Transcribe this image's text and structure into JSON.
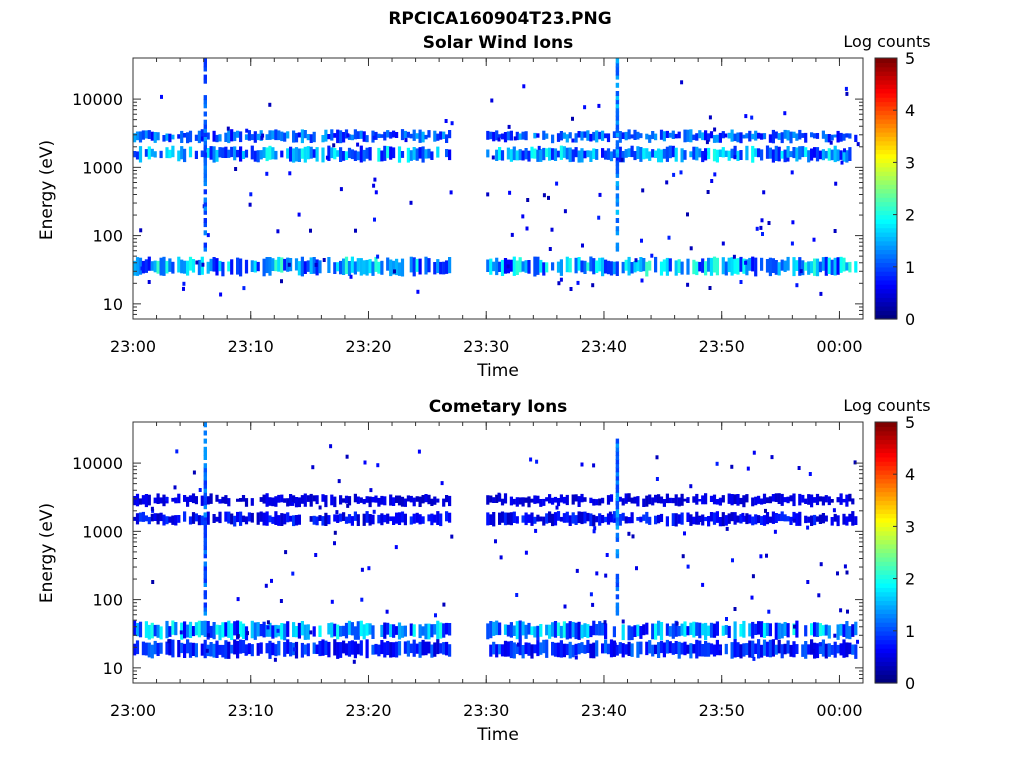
{
  "figure": {
    "title": "RPCICA160904T23.PNG"
  },
  "chart_data": [
    {
      "type": "heatmap",
      "title": "Solar Wind Ions",
      "xlabel": "Time",
      "ylabel": "Energy (eV)",
      "x_ticks": [
        "23:00",
        "23:10",
        "23:20",
        "23:30",
        "23:40",
        "23:50",
        "00:00"
      ],
      "y_ticks": [
        "10",
        "100",
        "1000",
        "10000"
      ],
      "y_scale": "log",
      "ylim": [
        6,
        40000
      ],
      "xlim": [
        "23:00",
        "00:02"
      ],
      "colorbar": {
        "label": "Log counts",
        "range": [
          0,
          5
        ],
        "ticks": [
          "0",
          "1",
          "2",
          "3",
          "4",
          "5"
        ]
      },
      "data_gap": [
        "23:27",
        "23:30"
      ],
      "bands": [
        {
          "energy_ev": [
            28,
            45
          ],
          "level_range": [
            0.6,
            2.2
          ]
        },
        {
          "energy_ev": [
            1300,
            1900
          ],
          "level_range": [
            0.6,
            2.0
          ]
        },
        {
          "energy_ev": [
            2500,
            3300
          ],
          "level_range": [
            0.6,
            1.5
          ]
        }
      ],
      "spikes": [
        {
          "time": "23:06",
          "energy_ev": [
            60,
            35000
          ],
          "level": 0.8
        },
        {
          "time": "23:41",
          "energy_ev": [
            60,
            35000
          ],
          "level": 1.0
        }
      ]
    },
    {
      "type": "heatmap",
      "title": "Cometary Ions",
      "xlabel": "Time",
      "ylabel": "Energy (eV)",
      "x_ticks": [
        "23:00",
        "23:10",
        "23:20",
        "23:30",
        "23:40",
        "23:50",
        "00:00"
      ],
      "y_ticks": [
        "10",
        "100",
        "1000",
        "10000"
      ],
      "y_scale": "log",
      "ylim": [
        6,
        40000
      ],
      "xlim": [
        "23:00",
        "00:02"
      ],
      "colorbar": {
        "label": "Log counts",
        "range": [
          0,
          5
        ],
        "ticks": [
          "0",
          "1",
          "2",
          "3",
          "4",
          "5"
        ]
      },
      "data_gap": [
        "23:27",
        "23:30"
      ],
      "bands": [
        {
          "energy_ev": [
            28,
            45
          ],
          "level_range": [
            0.5,
            2.0
          ]
        },
        {
          "energy_ev": [
            15,
            24
          ],
          "level_range": [
            0.4,
            1.2
          ]
        },
        {
          "energy_ev": [
            1300,
            1800
          ],
          "level_range": [
            0.3,
            0.9
          ]
        },
        {
          "energy_ev": [
            2500,
            3300
          ],
          "level_range": [
            0.3,
            0.6
          ]
        }
      ],
      "spikes": [
        {
          "time": "23:06",
          "energy_ev": [
            60,
            35000
          ],
          "level": 0.8
        },
        {
          "time": "23:41",
          "energy_ev": [
            60,
            22000
          ],
          "level": 0.9
        }
      ]
    }
  ]
}
